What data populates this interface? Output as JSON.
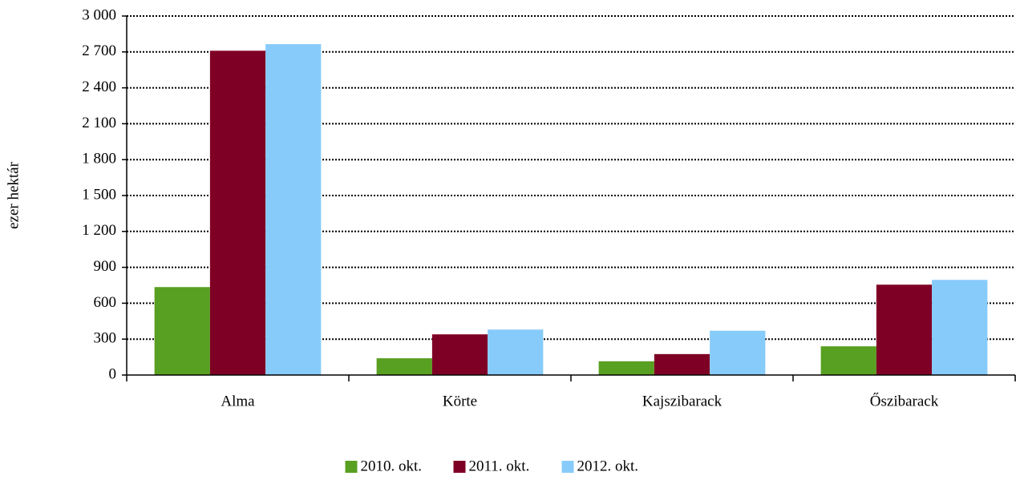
{
  "chart_data": {
    "type": "bar",
    "y_label": "ezer hektár",
    "categories": [
      "Alma",
      "Körte",
      "Kajszibarack",
      "Őszibarack"
    ],
    "series": [
      {
        "name": "2010. okt.",
        "color": "#58a021",
        "values": [
          735,
          140,
          115,
          240
        ]
      },
      {
        "name": "2011. okt.",
        "color": "#7f0025",
        "values": [
          2710,
          340,
          175,
          755
        ]
      },
      {
        "name": "2012. okt.",
        "color": "#87cbfa",
        "values": [
          2765,
          380,
          370,
          795
        ]
      }
    ],
    "ylim": [
      0,
      3000
    ],
    "yticks": [
      0,
      300,
      600,
      900,
      {
        "value": 1200,
        "label": "1 200"
      },
      {
        "value": 1500,
        "label": "1 500"
      },
      {
        "value": 1800,
        "label": "1 800"
      },
      {
        "value": 2100,
        "label": "2 100"
      },
      {
        "value": 2400,
        "label": "2 400"
      },
      {
        "value": 2700,
        "label": "2 700"
      },
      {
        "value": 3000,
        "label": "3 000"
      }
    ],
    "grid": true,
    "legend": "bottom"
  }
}
